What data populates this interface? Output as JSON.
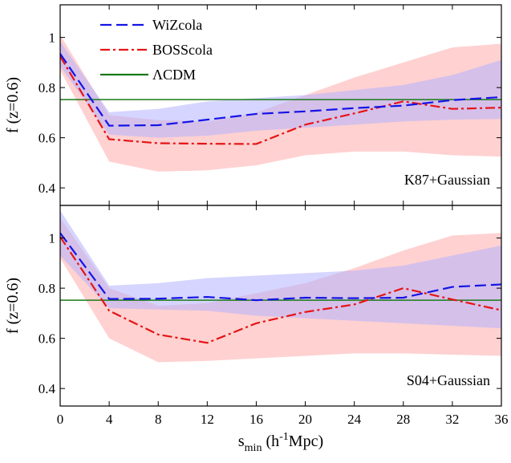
{
  "chart_data": [
    {
      "type": "line",
      "panel": "top",
      "ylabel": "f (z=0.6)",
      "annotation": "K87+Gaussian",
      "xlim": [
        0,
        36
      ],
      "ylim": [
        0.33,
        1.13
      ],
      "x": [
        0,
        4,
        8,
        12,
        16,
        20,
        24,
        28,
        32,
        36
      ],
      "yticks": [
        0.4,
        0.6,
        0.8,
        1
      ],
      "ytick_labels": [
        "0.4",
        "0.6",
        "0.8",
        "1"
      ],
      "reference_line": {
        "name": "ΛCDM",
        "y": 0.752,
        "color": "#1a7a1a"
      },
      "series": [
        {
          "name": "WiZcola",
          "color": "#1414e6",
          "band_color": "#b3b3ff",
          "values": [
            0.935,
            0.648,
            0.65,
            0.672,
            0.695,
            0.705,
            0.718,
            0.728,
            0.75,
            0.762
          ],
          "upper": [
            0.985,
            0.702,
            0.715,
            0.745,
            0.758,
            0.77,
            0.79,
            0.81,
            0.85,
            0.91
          ],
          "lower": [
            0.885,
            0.612,
            0.6,
            0.608,
            0.628,
            0.64,
            0.652,
            0.665,
            0.672,
            0.675
          ]
        },
        {
          "name": "BOSScola",
          "color": "#e61414",
          "band_color": "#ffb3b3",
          "values": [
            0.925,
            0.594,
            0.578,
            0.576,
            0.575,
            0.652,
            0.697,
            0.745,
            0.715,
            0.72
          ],
          "upper": [
            1.01,
            0.69,
            0.67,
            0.665,
            0.7,
            0.77,
            0.84,
            0.9,
            0.96,
            0.975
          ],
          "lower": [
            0.87,
            0.505,
            0.465,
            0.47,
            0.49,
            0.53,
            0.545,
            0.545,
            0.53,
            0.525
          ]
        }
      ]
    },
    {
      "type": "line",
      "panel": "bottom",
      "ylabel": "f (z=0.6)",
      "annotation": "S04+Gaussian",
      "xlabel_main": "s",
      "xlabel_sub": "min",
      "xlabel_rest": " (h",
      "xlabel_sup": "-1",
      "xlabel_end": "Mpc)",
      "xlim": [
        0,
        36
      ],
      "ylim": [
        0.33,
        1.13
      ],
      "x": [
        0,
        4,
        8,
        12,
        16,
        20,
        24,
        28,
        32,
        36
      ],
      "xticks": [
        0,
        4,
        8,
        12,
        16,
        20,
        24,
        28,
        32,
        36
      ],
      "xtick_labels": [
        "0",
        "4",
        "8",
        "12",
        "16",
        "20",
        "24",
        "28",
        "32",
        "36"
      ],
      "yticks": [
        0.4,
        0.6,
        0.8,
        1
      ],
      "ytick_labels": [
        "0.4",
        "0.6",
        "0.8",
        "1"
      ],
      "reference_line": {
        "name": "ΛCDM",
        "y": 0.752,
        "color": "#1a7a1a"
      },
      "series": [
        {
          "name": "WiZcola",
          "color": "#1414e6",
          "band_color": "#b3b3ff",
          "values": [
            1.02,
            0.757,
            0.758,
            0.765,
            0.752,
            0.762,
            0.76,
            0.762,
            0.805,
            0.815
          ],
          "upper": [
            1.11,
            0.81,
            0.82,
            0.84,
            0.85,
            0.86,
            0.87,
            0.89,
            0.93,
            0.97
          ],
          "lower": [
            0.93,
            0.72,
            0.715,
            0.71,
            0.69,
            0.68,
            0.67,
            0.66,
            0.65,
            0.64
          ]
        },
        {
          "name": "BOSScola",
          "color": "#e61414",
          "band_color": "#ffb3b3",
          "values": [
            1.005,
            0.71,
            0.615,
            0.582,
            0.66,
            0.705,
            0.735,
            0.8,
            0.755,
            0.712
          ],
          "upper": [
            1.08,
            0.8,
            0.73,
            0.74,
            0.78,
            0.82,
            0.88,
            0.95,
            1.01,
            1.02
          ],
          "lower": [
            0.92,
            0.6,
            0.505,
            0.51,
            0.52,
            0.53,
            0.54,
            0.54,
            0.535,
            0.53
          ]
        }
      ]
    }
  ],
  "legend": {
    "placement": "top-left",
    "items": [
      {
        "label": "WiZcola",
        "color": "#1414e6",
        "style": "dashed"
      },
      {
        "label": "BOSScola",
        "color": "#e61414",
        "style": "dashdot"
      },
      {
        "label": "ΛCDM",
        "color": "#1a7a1a",
        "style": "solid"
      }
    ]
  }
}
